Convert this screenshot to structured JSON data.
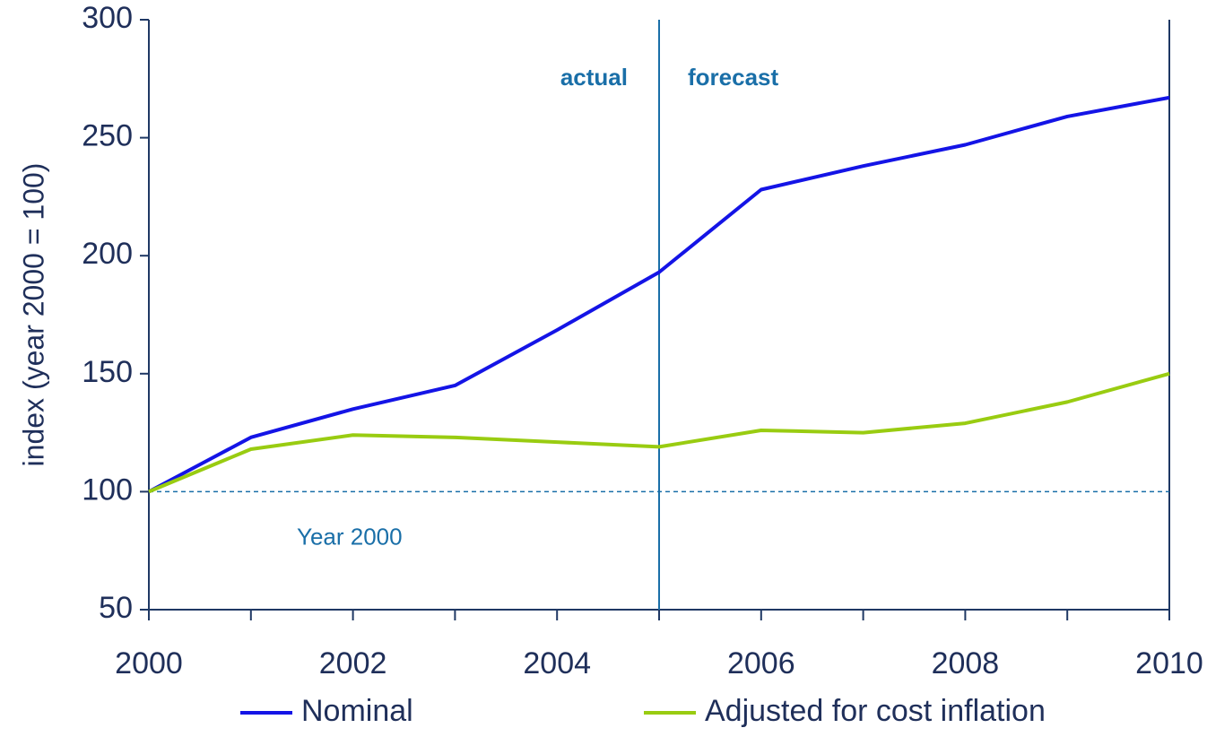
{
  "chart_data": {
    "type": "line",
    "y_label": "index (year 2000 = 100)",
    "x": [
      2000,
      2001,
      2002,
      2003,
      2004,
      2005,
      2006,
      2007,
      2008,
      2009,
      2010
    ],
    "series": [
      {
        "name": "Nominal",
        "color": "#1414e6",
        "values": [
          100,
          123,
          135,
          145,
          168.5,
          193,
          228,
          238,
          247,
          259,
          267
        ]
      },
      {
        "name": "Adjusted for cost inflation",
        "color": "#99cc11",
        "values": [
          100,
          118,
          124,
          123,
          121,
          119,
          126,
          125,
          129,
          138,
          150
        ]
      }
    ],
    "xlim": [
      2000,
      2010
    ],
    "xticks": [
      2000,
      2002,
      2004,
      2006,
      2008,
      2010
    ],
    "xminorticks": [
      2001,
      2003,
      2005,
      2007,
      2009
    ],
    "ylim": [
      50,
      300
    ],
    "yticks": [
      50,
      100,
      150,
      200,
      250,
      300
    ],
    "vline": 2005,
    "hline": 100,
    "annotations": [
      "actual",
      "forecast",
      "Year 2000"
    ],
    "legend": "bottom"
  }
}
